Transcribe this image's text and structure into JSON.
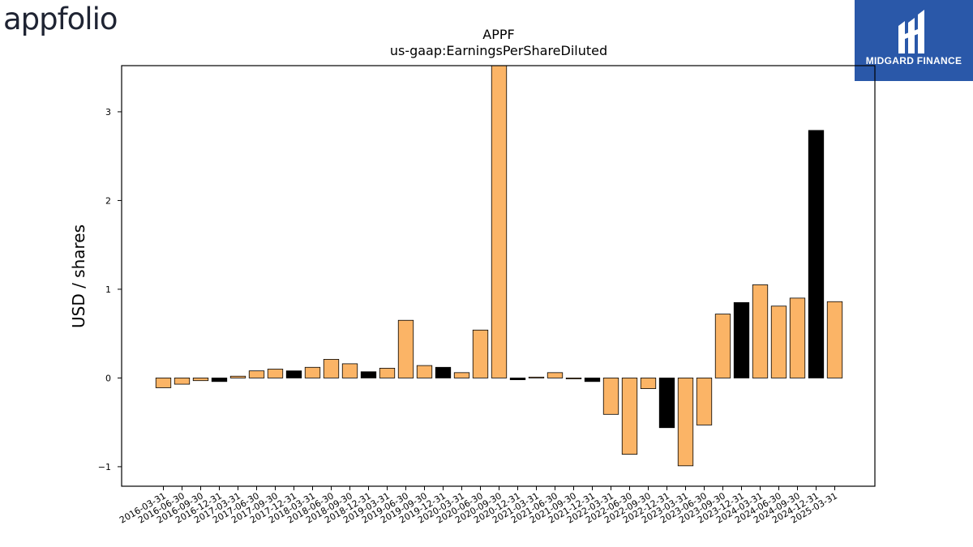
{
  "branding": {
    "company_logo_text": "appfolio",
    "publisher_name": "MIDGARD FINANCE"
  },
  "colors": {
    "bar_default": "#fbb466",
    "bar_highlight": "#000000",
    "bar_stroke": "#000000",
    "publisher_bg": "#2a58a9"
  },
  "chart_data": {
    "type": "bar",
    "title": "APPF",
    "subtitle": "us-gaap:EarningsPerShareDiluted",
    "xlabel": "",
    "ylabel": "USD / shares",
    "ylim": [
      -1.22,
      3.52
    ],
    "yticks": [
      -1,
      0,
      1,
      2,
      3
    ],
    "ytick_labels": [
      "−1",
      "0",
      "1",
      "2",
      "3"
    ],
    "grid": false,
    "categories": [
      "2016-03-31",
      "2016-06-30",
      "2016-09-30",
      "2016-12-31",
      "2017-03-31",
      "2017-06-30",
      "2017-09-30",
      "2017-12-31",
      "2018-03-31",
      "2018-06-30",
      "2018-09-30",
      "2018-12-31",
      "2019-03-31",
      "2019-06-30",
      "2019-09-30",
      "2019-12-31",
      "2020-03-31",
      "2020-06-30",
      "2020-09-30",
      "2020-12-31",
      "2021-03-31",
      "2021-06-30",
      "2021-09-30",
      "2021-12-31",
      "2022-03-31",
      "2022-06-30",
      "2022-09-30",
      "2022-12-31",
      "2023-03-31",
      "2023-06-30",
      "2023-09-30",
      "2023-12-31",
      "2024-03-31",
      "2024-06-30",
      "2024-09-30",
      "2024-12-31",
      "2025-03-31"
    ],
    "values": [
      -0.11,
      -0.07,
      -0.03,
      -0.04,
      0.02,
      0.08,
      0.1,
      0.08,
      0.12,
      0.21,
      0.16,
      0.07,
      0.11,
      0.65,
      0.14,
      0.12,
      0.06,
      0.54,
      3.55,
      -0.02,
      0.01,
      0.06,
      -0.01,
      -0.04,
      -0.41,
      -0.86,
      -0.12,
      -0.56,
      -0.99,
      -0.53,
      0.72,
      0.85,
      1.05,
      0.81,
      0.9,
      2.79,
      0.86
    ],
    "highlight": [
      false,
      false,
      false,
      true,
      false,
      false,
      false,
      true,
      false,
      false,
      false,
      true,
      false,
      false,
      false,
      true,
      false,
      false,
      false,
      true,
      false,
      false,
      false,
      true,
      false,
      false,
      false,
      true,
      false,
      false,
      false,
      true,
      false,
      false,
      false,
      true,
      false
    ]
  }
}
